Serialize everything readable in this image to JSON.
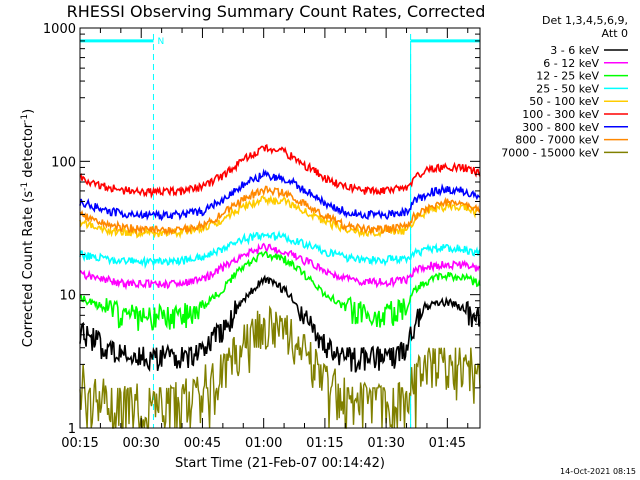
{
  "chart_data": {
    "type": "line",
    "title": "RHESSI Observing Summary Count Rates, Corrected",
    "xlabel": "Start Time (21-Feb-07 00:14:42)",
    "ylabel_parts": {
      "main": "Corrected Count Rate (s",
      "sup1": "-1",
      "mid": " detector",
      "sup2": "-1",
      "end": ")"
    },
    "yscale": "log",
    "ylim": [
      1,
      1000
    ],
    "xlim_minutes": [
      0,
      98
    ],
    "x_tick_labels": [
      "00:15",
      "00:30",
      "00:45",
      "01:00",
      "01:15",
      "01:30",
      "01:45"
    ],
    "x_tick_values_minutes": [
      0,
      15,
      30,
      45,
      60,
      75,
      90
    ],
    "y_tick_labels": [
      "1",
      "10",
      "100",
      "1000"
    ],
    "y_tick_values": [
      1,
      10,
      100,
      1000
    ],
    "legend_header": [
      "Det 1,3,4,5,6,9,",
      "Att 0"
    ],
    "legend_placement": "right",
    "footer_timestamp": "14-Oct-2021 08:15",
    "annotations": {
      "night_markers_minutes": [
        18,
        81,
        98
      ],
      "flag_bars": [
        {
          "from_minutes": 0,
          "to_minutes": 18,
          "label": "N"
        },
        {
          "from_minutes": 81,
          "to_minutes": 98,
          "label": ""
        }
      ],
      "value_level": 800,
      "color": "#00ffff"
    },
    "x_sample_minutes": [
      0,
      5,
      10,
      15,
      20,
      25,
      30,
      35,
      40,
      45,
      50,
      55,
      60,
      65,
      70,
      75,
      80,
      82,
      86,
      90,
      94,
      98
    ],
    "series": [
      {
        "name": "3 - 6 keV",
        "color": "#000000",
        "values": [
          5.5,
          4.2,
          3.6,
          3.4,
          3.4,
          3.5,
          3.8,
          5.5,
          9,
          13,
          11,
          6.5,
          4.3,
          3.4,
          3.3,
          3.4,
          3.8,
          6,
          8.5,
          8.8,
          8,
          6.5
        ]
      },
      {
        "name": "6 - 12 keV",
        "color": "#ff00ff",
        "values": [
          14.5,
          13.2,
          12.2,
          12,
          12,
          12.3,
          13,
          16,
          20,
          22.5,
          21.5,
          18,
          15,
          13.2,
          12.5,
          12.4,
          13,
          15,
          16.5,
          17,
          16.5,
          15.5
        ]
      },
      {
        "name": "12 - 25 keV",
        "color": "#00ff00",
        "values": [
          9.5,
          8.2,
          7.2,
          6.8,
          6.8,
          7,
          7.8,
          11,
          16,
          20,
          18.5,
          14,
          10,
          8,
          7.2,
          7.2,
          7.8,
          11,
          13,
          14,
          13.5,
          12
        ]
      },
      {
        "name": "25 - 50 keV",
        "color": "#00ffff",
        "values": [
          20,
          18.8,
          18,
          17.6,
          17.6,
          18,
          19,
          22,
          26,
          28,
          27,
          24,
          21,
          19,
          18.2,
          18.2,
          18.8,
          20.5,
          22,
          22.5,
          22,
          20.5
        ]
      },
      {
        "name": "50 - 100 keV",
        "color": "#ffcc00",
        "values": [
          35,
          31,
          29.5,
          29,
          29,
          29.5,
          31,
          37,
          46,
          52,
          50,
          42,
          35,
          31,
          29.5,
          29.5,
          30.5,
          37,
          44,
          46,
          45,
          40
        ]
      },
      {
        "name": "100 - 300 keV",
        "color": "#ff0000",
        "values": [
          75,
          66,
          61,
          59,
          59,
          60,
          64,
          78,
          102,
          125,
          118,
          94,
          75,
          64,
          60,
          60,
          63,
          76,
          88,
          92,
          90,
          82
        ]
      },
      {
        "name": "300 - 800 keV",
        "color": "#0000ff",
        "values": [
          50,
          44,
          40.5,
          39.5,
          39.5,
          40,
          42,
          51,
          67,
          79,
          75,
          61,
          49,
          42,
          39.8,
          39.8,
          41.5,
          50,
          59,
          62,
          60,
          54
        ]
      },
      {
        "name": "800 - 7000 keV",
        "color": "#ff8800",
        "values": [
          40,
          35,
          32,
          31,
          30.5,
          31,
          33,
          40,
          52,
          61,
          58,
          48,
          39,
          33,
          31,
          31,
          32.5,
          39,
          46,
          49,
          48,
          43
        ]
      },
      {
        "name": "7000 - 15000 keV",
        "color": "#808000",
        "values": [
          2,
          1.7,
          1.5,
          1.5,
          1.5,
          1.6,
          1.8,
          2.6,
          4.2,
          5.8,
          5.2,
          3.6,
          2.2,
          1.7,
          1.5,
          1.5,
          1.7,
          2.4,
          2.8,
          2.9,
          2.8,
          2.5
        ]
      }
    ]
  }
}
